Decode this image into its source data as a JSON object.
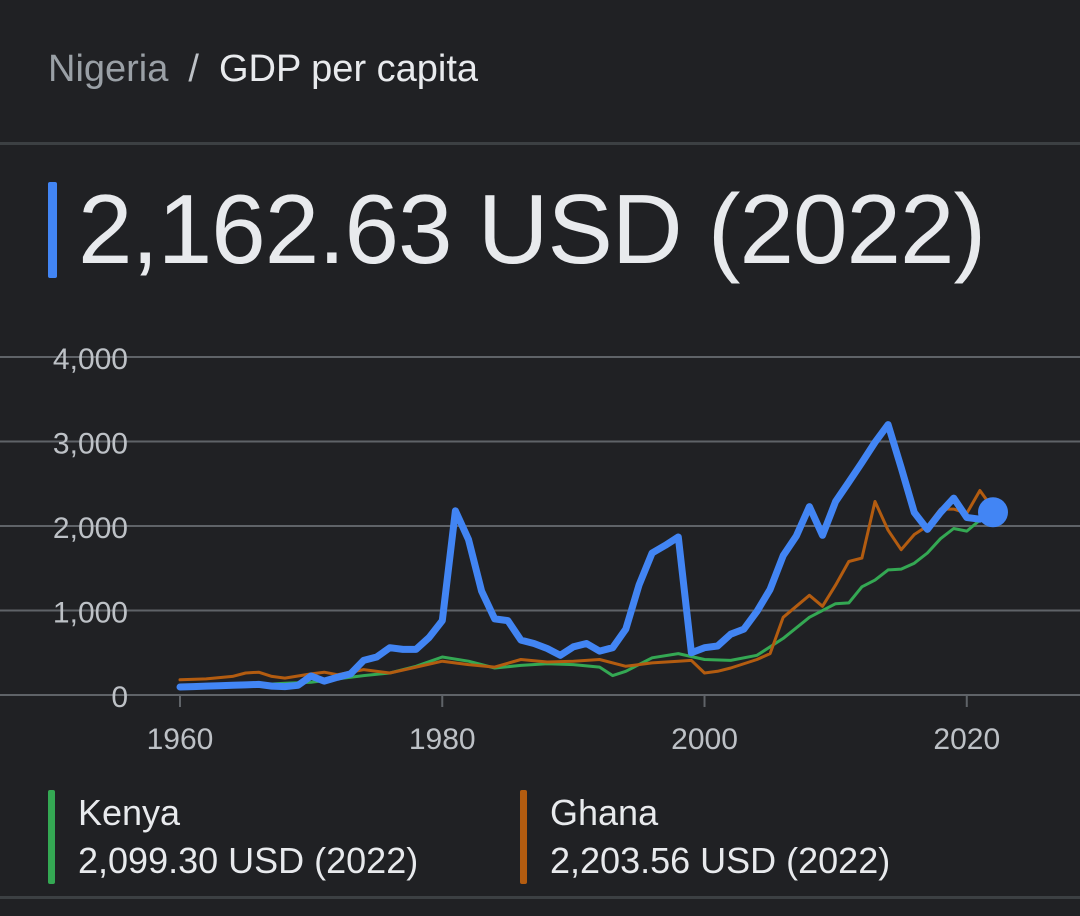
{
  "header": {
    "country": "Nigeria",
    "separator": "/",
    "metric": "GDP per capita"
  },
  "main_value": "2,162.63 USD (2022)",
  "colors": {
    "nigeria": "#4285f4",
    "kenya": "#34a853",
    "ghana": "#b35c10"
  },
  "legend": [
    {
      "name": "Kenya",
      "value": "2,099.30 USD (2022)",
      "color": "#34a853"
    },
    {
      "name": "Ghana",
      "value": "2,203.56 USD (2022)",
      "color": "#b35c10"
    }
  ],
  "chart_data": {
    "type": "line",
    "xlim": [
      1960,
      2022
    ],
    "ylim": [
      0,
      4000
    ],
    "x_ticks": [
      1960,
      1980,
      2000,
      2020
    ],
    "y_ticks": [
      0,
      1000,
      2000,
      3000,
      4000
    ],
    "y_tick_labels": [
      "0",
      "1,000",
      "2,000",
      "3,000",
      "4,000"
    ],
    "grid": true,
    "series": [
      {
        "name": "Nigeria",
        "color": "#4285f4",
        "highlight_last": true,
        "points": [
          [
            1960,
            95
          ],
          [
            1961,
            100
          ],
          [
            1962,
            105
          ],
          [
            1963,
            110
          ],
          [
            1964,
            115
          ],
          [
            1965,
            120
          ],
          [
            1966,
            125
          ],
          [
            1967,
            105
          ],
          [
            1968,
            100
          ],
          [
            1969,
            115
          ],
          [
            1970,
            225
          ],
          [
            1971,
            165
          ],
          [
            1972,
            210
          ],
          [
            1973,
            250
          ],
          [
            1974,
            410
          ],
          [
            1975,
            450
          ],
          [
            1976,
            560
          ],
          [
            1977,
            540
          ],
          [
            1978,
            540
          ],
          [
            1979,
            680
          ],
          [
            1980,
            880
          ],
          [
            1981,
            2180
          ],
          [
            1982,
            1840
          ],
          [
            1983,
            1230
          ],
          [
            1984,
            900
          ],
          [
            1985,
            880
          ],
          [
            1986,
            650
          ],
          [
            1987,
            610
          ],
          [
            1988,
            550
          ],
          [
            1989,
            470
          ],
          [
            1990,
            570
          ],
          [
            1991,
            610
          ],
          [
            1992,
            520
          ],
          [
            1993,
            560
          ],
          [
            1994,
            780
          ],
          [
            1995,
            1300
          ],
          [
            1996,
            1680
          ],
          [
            1997,
            1770
          ],
          [
            1998,
            1870
          ],
          [
            1999,
            500
          ],
          [
            2000,
            560
          ],
          [
            2001,
            580
          ],
          [
            2002,
            720
          ],
          [
            2003,
            780
          ],
          [
            2004,
            990
          ],
          [
            2005,
            1250
          ],
          [
            2006,
            1650
          ],
          [
            2007,
            1880
          ],
          [
            2008,
            2230
          ],
          [
            2009,
            1890
          ],
          [
            2010,
            2290
          ],
          [
            2011,
            2520
          ],
          [
            2012,
            2750
          ],
          [
            2013,
            2990
          ],
          [
            2014,
            3200
          ],
          [
            2015,
            2690
          ],
          [
            2016,
            2160
          ],
          [
            2017,
            1960
          ],
          [
            2018,
            2160
          ],
          [
            2019,
            2330
          ],
          [
            2020,
            2100
          ],
          [
            2021,
            2080
          ],
          [
            2022,
            2163
          ]
        ]
      },
      {
        "name": "Kenya",
        "color": "#34a853",
        "points": [
          [
            1960,
            100
          ],
          [
            1962,
            105
          ],
          [
            1964,
            110
          ],
          [
            1966,
            120
          ],
          [
            1968,
            140
          ],
          [
            1970,
            150
          ],
          [
            1972,
            190
          ],
          [
            1974,
            230
          ],
          [
            1976,
            260
          ],
          [
            1978,
            340
          ],
          [
            1980,
            450
          ],
          [
            1982,
            400
          ],
          [
            1984,
            320
          ],
          [
            1986,
            350
          ],
          [
            1988,
            370
          ],
          [
            1990,
            360
          ],
          [
            1992,
            330
          ],
          [
            1993,
            230
          ],
          [
            1994,
            280
          ],
          [
            1996,
            440
          ],
          [
            1998,
            490
          ],
          [
            2000,
            420
          ],
          [
            2002,
            410
          ],
          [
            2004,
            470
          ],
          [
            2006,
            670
          ],
          [
            2008,
            920
          ],
          [
            2010,
            1080
          ],
          [
            2011,
            1090
          ],
          [
            2012,
            1280
          ],
          [
            2013,
            1360
          ],
          [
            2014,
            1480
          ],
          [
            2015,
            1490
          ],
          [
            2016,
            1560
          ],
          [
            2017,
            1680
          ],
          [
            2018,
            1850
          ],
          [
            2019,
            1970
          ],
          [
            2020,
            1940
          ],
          [
            2021,
            2070
          ],
          [
            2022,
            2099
          ]
        ]
      },
      {
        "name": "Ghana",
        "color": "#b35c10",
        "points": [
          [
            1960,
            180
          ],
          [
            1962,
            190
          ],
          [
            1964,
            220
          ],
          [
            1965,
            260
          ],
          [
            1966,
            270
          ],
          [
            1967,
            220
          ],
          [
            1968,
            200
          ],
          [
            1970,
            250
          ],
          [
            1971,
            270
          ],
          [
            1972,
            240
          ],
          [
            1974,
            300
          ],
          [
            1976,
            260
          ],
          [
            1978,
            330
          ],
          [
            1980,
            400
          ],
          [
            1982,
            360
          ],
          [
            1984,
            330
          ],
          [
            1986,
            420
          ],
          [
            1988,
            390
          ],
          [
            1990,
            400
          ],
          [
            1992,
            420
          ],
          [
            1994,
            340
          ],
          [
            1996,
            380
          ],
          [
            1998,
            400
          ],
          [
            1999,
            410
          ],
          [
            2000,
            260
          ],
          [
            2001,
            280
          ],
          [
            2002,
            320
          ],
          [
            2004,
            420
          ],
          [
            2005,
            490
          ],
          [
            2006,
            920
          ],
          [
            2008,
            1180
          ],
          [
            2009,
            1050
          ],
          [
            2010,
            1300
          ],
          [
            2011,
            1580
          ],
          [
            2012,
            1620
          ],
          [
            2013,
            2290
          ],
          [
            2014,
            1950
          ],
          [
            2015,
            1720
          ],
          [
            2016,
            1900
          ],
          [
            2017,
            2000
          ],
          [
            2018,
            2200
          ],
          [
            2019,
            2200
          ],
          [
            2020,
            2150
          ],
          [
            2021,
            2420
          ],
          [
            2022,
            2204
          ]
        ]
      }
    ]
  }
}
